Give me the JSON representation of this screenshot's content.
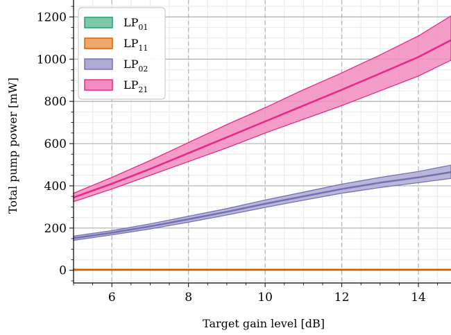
{
  "chart_data": {
    "type": "area",
    "xlabel": "Target gain level [dB]",
    "ylabel": "Total pump power [mW]",
    "xlim": [
      5,
      14.85
    ],
    "ylim": [
      -60,
      1280
    ],
    "xticks": [
      6,
      8,
      10,
      12,
      14
    ],
    "yticks": [
      0,
      200,
      400,
      600,
      800,
      1000,
      1200
    ],
    "xtick_labels": [
      "6",
      "8",
      "10",
      "12",
      "14"
    ],
    "ytick_labels": [
      "0",
      "200",
      "400",
      "600",
      "800",
      "1000",
      "1200"
    ],
    "grid": true,
    "legend_position": "top-left",
    "series": [
      {
        "name_main": "LP",
        "name_sub": "01",
        "color": "#1b9e77",
        "fill": "#7fc9a9",
        "x": [
          5,
          14.85
        ],
        "mean": [
          3,
          3
        ],
        "lower": [
          1,
          1
        ],
        "upper": [
          5,
          5
        ]
      },
      {
        "name_main": "LP",
        "name_sub": "11",
        "color": "#d95f02",
        "fill": "#f0a66a",
        "x": [
          5,
          14.85
        ],
        "mean": [
          3,
          3
        ],
        "lower": [
          1,
          1
        ],
        "upper": [
          5,
          5
        ]
      },
      {
        "name_main": "LP",
        "name_sub": "02",
        "color": "#7570b3",
        "fill": "#aeaad3",
        "x": [
          5,
          6,
          7,
          8,
          9,
          10,
          11,
          12,
          13,
          14,
          14.85
        ],
        "mean": [
          152,
          178,
          208,
          242,
          277,
          315,
          350,
          385,
          415,
          440,
          465
        ],
        "lower": [
          142,
          168,
          196,
          228,
          262,
          298,
          332,
          365,
          392,
          415,
          435
        ],
        "upper": [
          162,
          188,
          220,
          256,
          292,
          333,
          370,
          408,
          440,
          468,
          498
        ]
      },
      {
        "name_main": "LP",
        "name_sub": "21",
        "color": "#e7298a",
        "fill": "#f28cc0",
        "x": [
          5,
          6,
          7,
          8,
          9,
          10,
          11,
          12,
          13,
          14,
          14.85
        ],
        "mean": [
          345,
          410,
          480,
          555,
          630,
          705,
          780,
          855,
          932,
          1010,
          1090
        ],
        "lower": [
          325,
          385,
          450,
          515,
          580,
          650,
          715,
          780,
          850,
          920,
          995
        ],
        "upper": [
          365,
          440,
          520,
          605,
          690,
          770,
          855,
          935,
          1020,
          1110,
          1205
        ]
      }
    ]
  }
}
